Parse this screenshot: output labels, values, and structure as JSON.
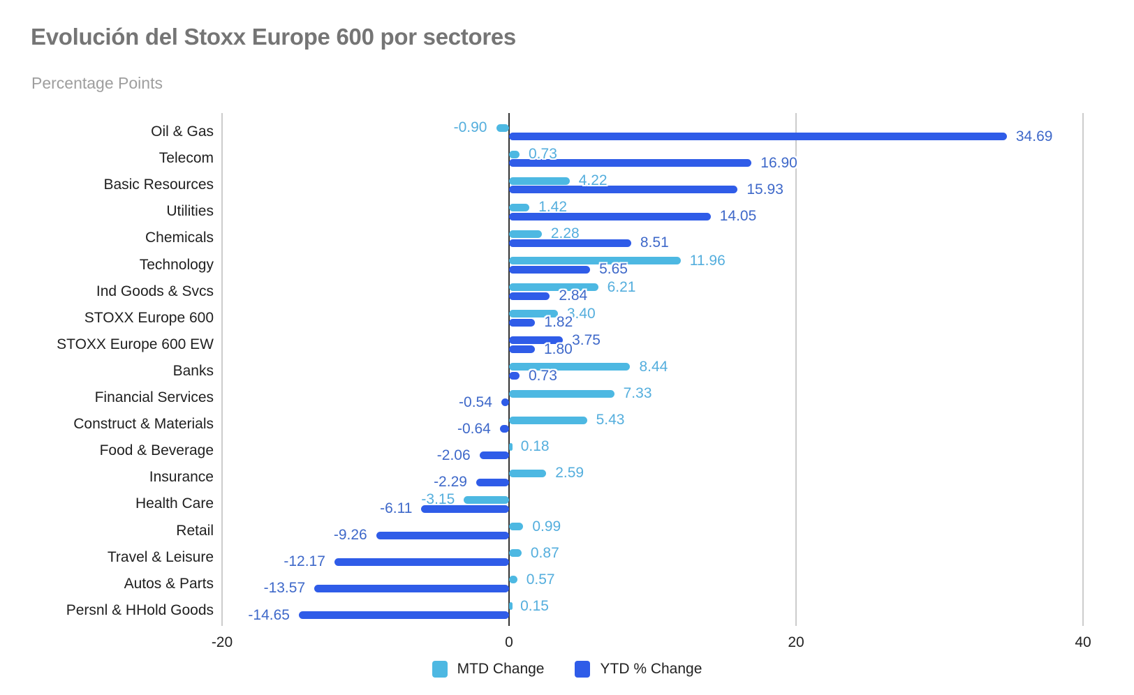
{
  "chart_data": {
    "type": "bar",
    "orientation": "horizontal",
    "title": "Evolución del Stoxx Europe 600 por sectores",
    "subtitle": "Percentage Points",
    "categories": [
      "Oil & Gas",
      "Telecom",
      "Basic Resources",
      "Utilities",
      "Chemicals",
      "Technology",
      "Ind Goods & Svcs",
      "STOXX Europe 600",
      "STOXX Europe 600 EW",
      "Banks",
      "Financial Services",
      "Construct & Materials",
      "Food & Beverage",
      "Insurance",
      "Health Care",
      "Retail",
      "Travel & Leisure",
      "Autos & Parts",
      "Persnl & HHold Goods"
    ],
    "series": [
      {
        "name": "MTD Change",
        "color": "#4db8e2",
        "label_color": "#54aedd",
        "values": [
          -0.9,
          0.73,
          4.22,
          1.42,
          2.28,
          11.96,
          6.21,
          3.4,
          3.75,
          8.44,
          7.33,
          5.43,
          0.18,
          2.59,
          -3.15,
          0.99,
          0.87,
          0.57,
          0.15
        ]
      },
      {
        "name": "YTD % Change",
        "color": "#2f5ce8",
        "label_color": "#3e68c9",
        "values": [
          34.69,
          16.9,
          15.93,
          14.05,
          8.51,
          5.65,
          2.84,
          1.82,
          1.8,
          0.73,
          -0.54,
          -0.64,
          -2.06,
          -2.29,
          -6.11,
          -9.26,
          -12.17,
          -13.57,
          -14.65
        ]
      }
    ],
    "render_anomaly": {
      "category": "STOXX Europe 600 EW",
      "series": "MTD Change",
      "note": "In the source image this MTD bar and its data label are rendered in the dark YTD blue."
    },
    "value_label_decimals": 2,
    "xlim": [
      -20,
      40
    ],
    "x_ticks": [
      -20,
      0,
      20,
      40
    ],
    "grid": true,
    "legend_position": "bottom",
    "colors": {
      "title": "#757575",
      "subtitle": "#9e9e9e",
      "category_label": "#1f1f1f",
      "axis_tick_label": "#222222",
      "legend_label": "#222222",
      "gridline": "#cccccc",
      "zero_line": "#333333",
      "background": "#ffffff"
    }
  }
}
